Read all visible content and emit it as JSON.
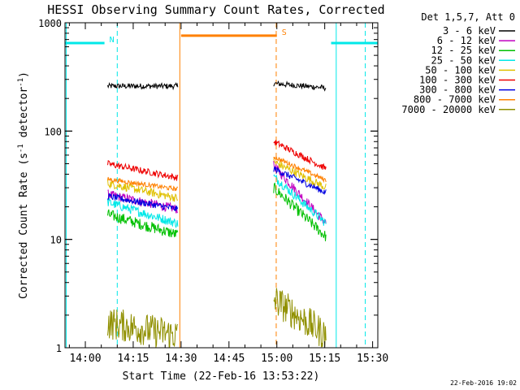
{
  "chart_data": {
    "type": "line",
    "title": "HESSI Observing Summary Count Rates, Corrected",
    "xlabel": "Start Time (22-Feb-16 13:53:22)",
    "ylabel": "Corrected Count Rate (s⁻¹ detector⁻¹)",
    "ylabel_parts": [
      "Corrected Count Rate (s",
      "-1",
      " detector",
      "-1",
      ")"
    ],
    "yscale": "log",
    "ylim": [
      1,
      1000
    ],
    "xlim_minutes": [
      -6.37,
      91.63
    ],
    "x_tick_labels": [
      "14:00",
      "14:15",
      "14:30",
      "14:45",
      "15:00",
      "15:15",
      "15:30"
    ],
    "x_tick_minutes": [
      0,
      15,
      30,
      45,
      60,
      75,
      90
    ],
    "y_tick_labels": [
      "1",
      "10",
      "100",
      "1000"
    ],
    "y_tick_values": [
      1,
      10,
      100,
      1000
    ],
    "grid": false,
    "legend": {
      "placement": "right",
      "header": "Det 1,5,7, Att 0"
    },
    "footer_timestamp": "22-Feb-2016 19:02",
    "segments": [
      [
        7,
        29
      ],
      [
        59,
        75.5
      ]
    ],
    "series": [
      {
        "name": "3 - 6 keV",
        "color": "#000000",
        "start": [
          260,
          275
        ],
        "end": [
          260,
          250
        ],
        "noise": 0.06
      },
      {
        "name": "6 - 12 keV",
        "color": "#c000c0",
        "start": [
          26,
          48
        ],
        "end": [
          19,
          14
        ],
        "noise": 0.1
      },
      {
        "name": "12 - 25 keV",
        "color": "#00c000",
        "start": [
          17,
          30
        ],
        "end": [
          11,
          10.5
        ],
        "noise": 0.12
      },
      {
        "name": "25 - 50 keV",
        "color": "#00e8e8",
        "start": [
          22,
          38
        ],
        "end": [
          14,
          14
        ],
        "noise": 0.1
      },
      {
        "name": "50 - 100 keV",
        "color": "#e0c000",
        "start": [
          33,
          52
        ],
        "end": [
          24,
          30
        ],
        "noise": 0.09
      },
      {
        "name": "100 - 300 keV",
        "color": "#ee0000",
        "start": [
          50,
          80
        ],
        "end": [
          37,
          45
        ],
        "noise": 0.07
      },
      {
        "name": "300 - 800 keV",
        "color": "#0000e0",
        "start": [
          25,
          45
        ],
        "end": [
          19,
          27
        ],
        "noise": 0.07
      },
      {
        "name": "800 - 7000 keV",
        "color": "#ff8000",
        "start": [
          36,
          58
        ],
        "end": [
          29,
          35
        ],
        "noise": 0.05
      },
      {
        "name": "7000 - 20000 keV",
        "color": "#909000",
        "start": [
          1.7,
          2.8
        ],
        "end": [
          1.3,
          1.3
        ],
        "noise": 0.35
      }
    ],
    "flags": [
      {
        "label": "N",
        "color": "#00e8e8",
        "level": 650,
        "intervals": [
          [
            -6.37,
            6
          ]
        ]
      },
      {
        "label": "S",
        "color": "#ff8000",
        "level": 760,
        "intervals": [
          [
            30,
            60
          ]
        ]
      },
      {
        "label": "",
        "color": "#00e8e8",
        "level": 650,
        "intervals": [
          [
            77,
            91.63
          ]
        ]
      }
    ],
    "vertical_lines": [
      {
        "minute": -6,
        "color": "#00e8e8",
        "style": "solid"
      },
      {
        "minute": 10,
        "color": "#00e8e8",
        "style": "dashed"
      },
      {
        "minute": 29.6,
        "color": "#ff8000",
        "style": "solid"
      },
      {
        "minute": 59.8,
        "color": "#ff8000",
        "style": "dashed"
      },
      {
        "minute": 78.6,
        "color": "#00e8e8",
        "style": "solid"
      },
      {
        "minute": 87.7,
        "color": "#00e8e8",
        "style": "dashed"
      }
    ]
  }
}
